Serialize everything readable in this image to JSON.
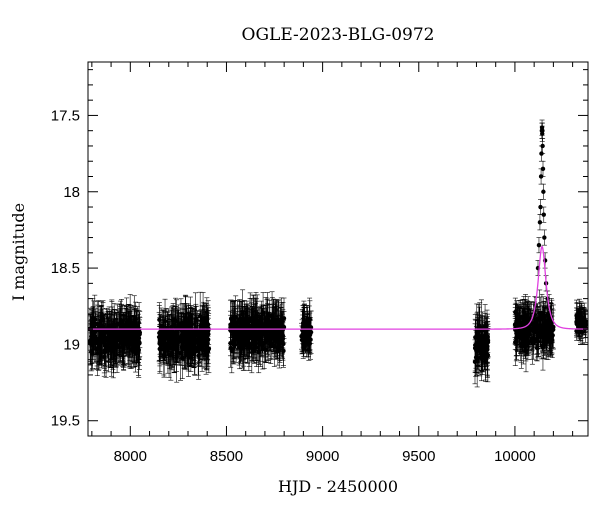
{
  "chart_data": {
    "type": "scatter",
    "title": "OGLE-2023-BLG-0972",
    "xlabel": "HJD - 2450000",
    "ylabel": "I magnitude",
    "xlim": [
      7780,
      10380
    ],
    "ylim": [
      19.6,
      17.15
    ],
    "y_inverted": true,
    "grid": false,
    "x_ticks": [
      8000,
      8500,
      9000,
      9500,
      10000
    ],
    "x_tick_labels": [
      "8000",
      "8500",
      "9000",
      "9500",
      "10000"
    ],
    "y_ticks": [
      17.5,
      18,
      18.5,
      19,
      19.5
    ],
    "y_tick_labels": [
      "17.5",
      "18",
      "18.5",
      "19",
      "19.5"
    ],
    "series": [
      {
        "kind": "observations",
        "color": "#000000",
        "seasons": [
          {
            "x_range": [
              7790,
              8050
            ],
            "mean_mag": 18.95,
            "scatter": 0.12,
            "error": 0.14
          },
          {
            "x_range": [
              8150,
              8410
            ],
            "mean_mag": 18.95,
            "scatter": 0.13,
            "error": 0.14
          },
          {
            "x_range": [
              8520,
              8800
            ],
            "mean_mag": 18.92,
            "scatter": 0.12,
            "error": 0.13
          },
          {
            "x_range": [
              8890,
              8940
            ],
            "mean_mag": 18.92,
            "scatter": 0.1,
            "error": 0.11
          },
          {
            "x_range": [
              9790,
              9860
            ],
            "mean_mag": 19.0,
            "scatter": 0.15,
            "error": 0.15
          },
          {
            "x_range": [
              10000,
              10200
            ],
            "mean_mag": 18.9,
            "scatter": 0.12,
            "error": 0.12
          },
          {
            "x_range": [
              10320,
              10370
            ],
            "mean_mag": 18.85,
            "scatter": 0.07,
            "error": 0.08
          }
        ],
        "peak_points": [
          [
            10120,
            18.5
          ],
          [
            10125,
            18.35
          ],
          [
            10130,
            18.2
          ],
          [
            10133,
            18.1
          ],
          [
            10136,
            17.9
          ],
          [
            10138,
            17.75
          ],
          [
            10140,
            17.6
          ],
          [
            10141,
            17.58
          ],
          [
            10142,
            17.62
          ],
          [
            10143,
            17.6
          ],
          [
            10144,
            17.7
          ],
          [
            10146,
            17.85
          ],
          [
            10148,
            18.0
          ],
          [
            10150,
            18.15
          ],
          [
            10153,
            18.3
          ],
          [
            10157,
            18.45
          ],
          [
            10162,
            18.6
          ],
          [
            10170,
            18.7
          ]
        ]
      },
      {
        "kind": "model",
        "color": "#e040e0",
        "baseline_mag": 18.9,
        "t0": 10141,
        "tE": 29,
        "u0": 0.72
      }
    ]
  }
}
